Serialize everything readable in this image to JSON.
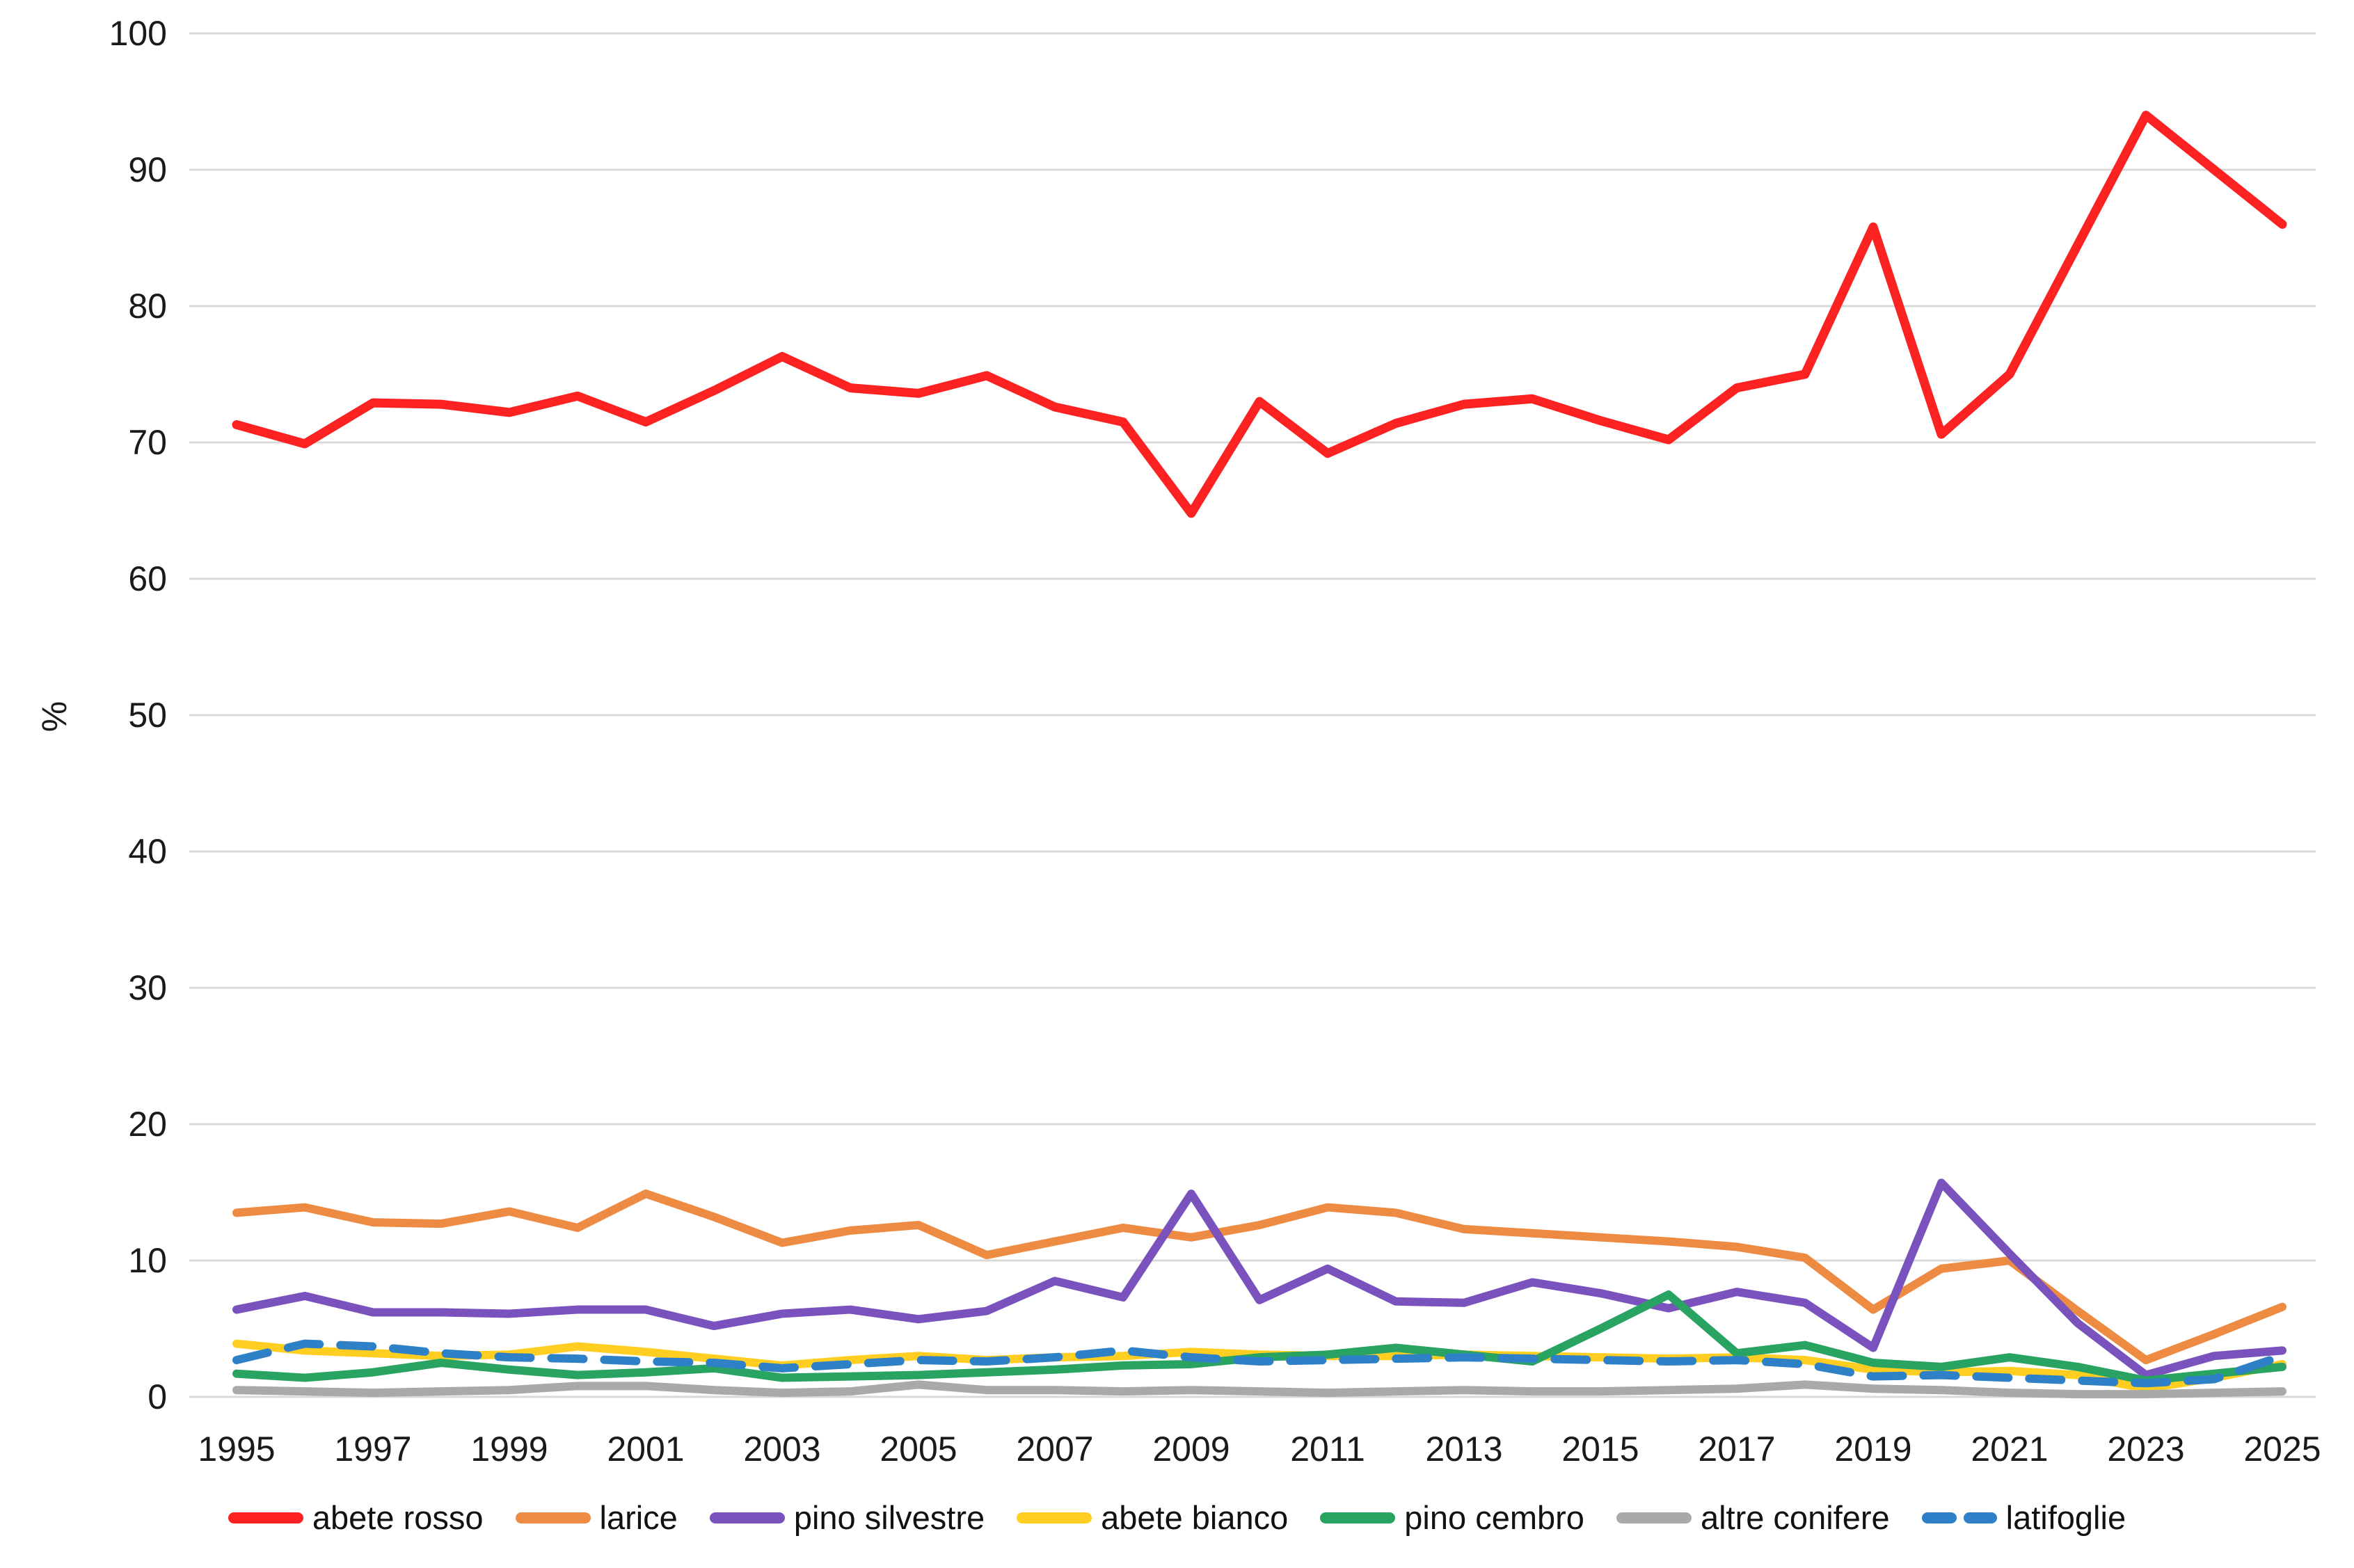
{
  "chart_data": {
    "type": "line",
    "title": "",
    "xlabel": "",
    "ylabel": "%",
    "ylim": [
      0,
      100
    ],
    "grid": true,
    "legend_position": "bottom",
    "x": [
      1995,
      1996,
      1997,
      1998,
      1999,
      2000,
      2001,
      2002,
      2003,
      2004,
      2005,
      2006,
      2007,
      2008,
      2009,
      2010,
      2011,
      2012,
      2013,
      2014,
      2015,
      2016,
      2017,
      2018,
      2019,
      2020,
      2021,
      2022,
      2023,
      2024,
      2025
    ],
    "x_tick_labels": [
      "1995",
      "1997",
      "1999",
      "2001",
      "2003",
      "2005",
      "2007",
      "2009",
      "2011",
      "2013",
      "2015",
      "2017",
      "2019",
      "2021",
      "2023",
      "2025"
    ],
    "y_tick_labels": [
      "0",
      "10",
      "20",
      "30",
      "40",
      "50",
      "60",
      "70",
      "80",
      "90",
      "100"
    ],
    "y_ticks": [
      0,
      10,
      20,
      30,
      40,
      50,
      60,
      70,
      80,
      90,
      100
    ],
    "series": [
      {
        "name": "abete rosso",
        "color": "#FC2222",
        "dash": null,
        "width": 13,
        "values": [
          71.3,
          69.9,
          72.9,
          72.8,
          72.2,
          73.4,
          71.5,
          73.8,
          76.3,
          74.0,
          73.6,
          74.9,
          72.6,
          71.5,
          64.8,
          73.0,
          69.2,
          71.4,
          72.8,
          73.2,
          71.6,
          70.2,
          74.0,
          75.0,
          85.8,
          70.6,
          75.0,
          84.5,
          94.0,
          90.0,
          86.0
        ]
      },
      {
        "name": "larice",
        "color": "#ED8B43",
        "dash": null,
        "width": 12,
        "values": [
          13.5,
          13.9,
          12.8,
          12.7,
          13.6,
          12.4,
          14.9,
          13.2,
          11.3,
          12.2,
          12.6,
          10.4,
          11.4,
          12.4,
          11.7,
          12.6,
          13.9,
          13.5,
          12.3,
          12.0,
          11.7,
          11.4,
          11.0,
          10.2,
          6.4,
          9.4,
          10.0,
          6.3,
          2.7,
          4.6,
          6.6
        ]
      },
      {
        "name": "pino silvestre",
        "color": "#7A52BE",
        "dash": null,
        "width": 12,
        "values": [
          6.4,
          7.4,
          6.2,
          6.2,
          6.1,
          6.4,
          6.4,
          5.2,
          6.1,
          6.4,
          5.7,
          6.3,
          8.5,
          7.3,
          14.9,
          7.1,
          9.4,
          7.0,
          6.9,
          8.4,
          7.6,
          6.5,
          7.7,
          6.9,
          3.6,
          15.7,
          10.5,
          5.4,
          1.6,
          3.0,
          3.4
        ]
      },
      {
        "name": "abete bianco",
        "color": "#FFCE21",
        "dash": null,
        "width": 12,
        "values": [
          3.9,
          3.4,
          3.2,
          3.0,
          3.1,
          3.7,
          3.3,
          2.8,
          2.3,
          2.7,
          3.0,
          2.7,
          2.9,
          3.0,
          3.3,
          3.1,
          3.0,
          3.0,
          3.1,
          3.0,
          2.9,
          2.8,
          2.9,
          2.7,
          2.0,
          1.8,
          1.9,
          1.6,
          0.6,
          1.4,
          2.4
        ]
      },
      {
        "name": "pino cembro",
        "color": "#29A361",
        "dash": null,
        "width": 12,
        "values": [
          1.7,
          1.4,
          1.8,
          2.5,
          2.0,
          1.6,
          1.8,
          2.1,
          1.4,
          1.5,
          1.6,
          1.8,
          2.0,
          2.3,
          2.4,
          2.9,
          3.1,
          3.6,
          3.1,
          2.6,
          5.0,
          7.5,
          3.2,
          3.8,
          2.5,
          2.2,
          2.9,
          2.2,
          1.2,
          1.7,
          2.2
        ]
      },
      {
        "name": "altre conifere",
        "color": "#A9A9A9",
        "dash": null,
        "width": 12,
        "values": [
          0.5,
          0.4,
          0.3,
          0.4,
          0.5,
          0.8,
          0.8,
          0.5,
          0.3,
          0.4,
          0.9,
          0.5,
          0.5,
          0.4,
          0.5,
          0.4,
          0.3,
          0.4,
          0.5,
          0.4,
          0.4,
          0.5,
          0.6,
          0.9,
          0.6,
          0.5,
          0.3,
          0.2,
          0.2,
          0.3,
          0.4
        ]
      },
      {
        "name": "latifoglie",
        "color": "#2E80C7",
        "dash": "46 30",
        "width": 12,
        "values": [
          2.7,
          3.9,
          3.7,
          3.2,
          2.9,
          2.8,
          2.6,
          2.5,
          2.1,
          2.4,
          2.7,
          2.6,
          2.9,
          3.4,
          2.9,
          2.6,
          2.7,
          2.8,
          2.9,
          2.8,
          2.7,
          2.6,
          2.7,
          2.4,
          1.5,
          1.6,
          1.4,
          1.2,
          1.0,
          1.3,
          3.0
        ]
      }
    ],
    "colors": {
      "grid": "#D9D9D9",
      "tick_text": "#1A1A1A"
    }
  }
}
